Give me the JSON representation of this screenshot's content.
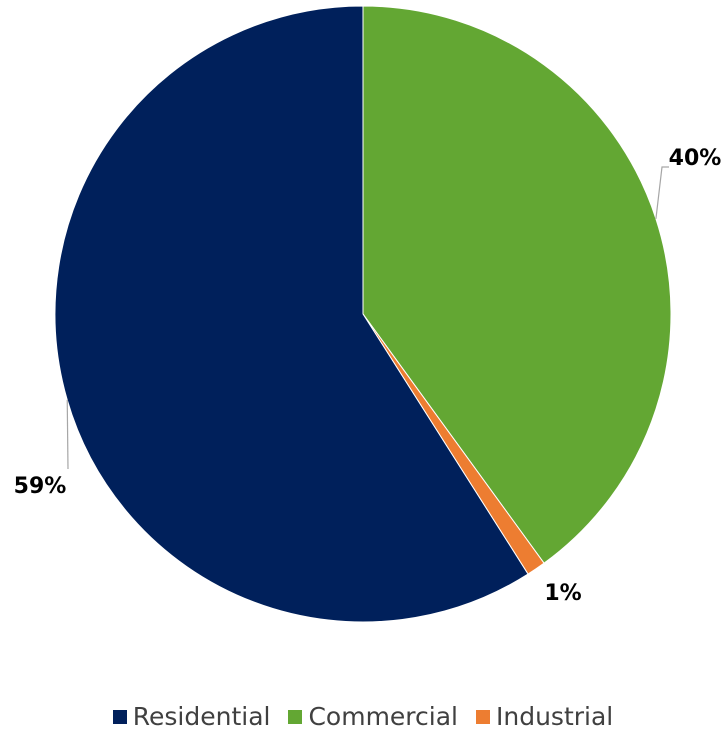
{
  "chart_data": {
    "type": "pie",
    "title": "",
    "legend_position": "bottom",
    "slices": [
      {
        "label": "Commercial",
        "value": 40,
        "display": "40%",
        "color": "#63a733"
      },
      {
        "label": "Industrial",
        "value": 1,
        "display": "1%",
        "color": "#ed7d31"
      },
      {
        "label": "Residential",
        "value": 59,
        "display": "59%",
        "color": "#00205b"
      }
    ],
    "legend": [
      {
        "label": "Residential",
        "color": "#00205b"
      },
      {
        "label": "Commercial",
        "color": "#63a733"
      },
      {
        "label": "Industrial",
        "color": "#ed7d31"
      }
    ]
  }
}
